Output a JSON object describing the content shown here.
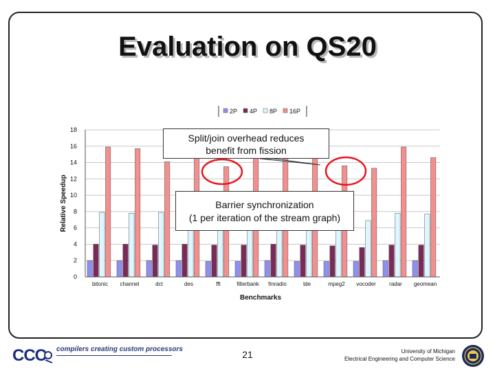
{
  "slide": {
    "title": "Evaluation on QS20",
    "page_number": "21"
  },
  "chart_data": {
    "type": "bar",
    "title": "",
    "xlabel": "Benchmarks",
    "ylabel": "Relative Speedup",
    "ylim": [
      0,
      18
    ],
    "yticks": [
      0,
      2,
      4,
      6,
      8,
      10,
      12,
      14,
      16,
      18
    ],
    "ytick_labels": [
      "0",
      "2",
      "4",
      "6",
      "8",
      "10",
      "12",
      "14",
      "16",
      "18"
    ],
    "grid": true,
    "legend": "top",
    "categories": [
      "bitonic",
      "channel",
      "dct",
      "des",
      "fft",
      "filterbank",
      "fmradio",
      "tde",
      "mpeg2",
      "vocoder",
      "radar",
      "geomean"
    ],
    "series": [
      {
        "name": "2P",
        "color": "#8f8ff0",
        "values": [
          2.0,
          2.0,
          2.0,
          2.0,
          1.9,
          1.9,
          2.0,
          1.9,
          1.9,
          1.9,
          2.0,
          2.0
        ]
      },
      {
        "name": "4P",
        "color": "#7a2a58",
        "values": [
          4.0,
          4.0,
          3.9,
          4.0,
          3.9,
          3.9,
          4.0,
          3.9,
          3.8,
          3.6,
          3.9,
          3.9
        ]
      },
      {
        "name": "8P",
        "color": "#ddf6ff",
        "values": [
          7.9,
          7.8,
          7.9,
          7.9,
          7.6,
          7.8,
          7.9,
          7.6,
          7.1,
          6.9,
          7.8,
          7.7
        ]
      },
      {
        "name": "16P",
        "color": "#f28f8f",
        "values": [
          15.9,
          15.7,
          14.1,
          15.8,
          13.5,
          15.5,
          15.6,
          14.9,
          13.6,
          13.3,
          15.9,
          14.6
        ]
      }
    ],
    "annotations": [
      {
        "id": "split-join",
        "text_line1": "Split/join overhead reduces",
        "text_line2": "benefit from fission"
      },
      {
        "id": "barrier",
        "text_line1": "Barrier synchronization",
        "text_line2": "(1 per iteration of the stream graph)"
      }
    ]
  },
  "footer": {
    "logo_text": "CCC",
    "tagline": "compilers creating custom processors",
    "university_line1": "University of Michigan",
    "university_line2": "Electrical Engineering and Computer Science"
  },
  "colors": {
    "highlight_circle": "#e8141e",
    "tagline": "#2a3a7a",
    "logo": "#1a2d7a"
  }
}
